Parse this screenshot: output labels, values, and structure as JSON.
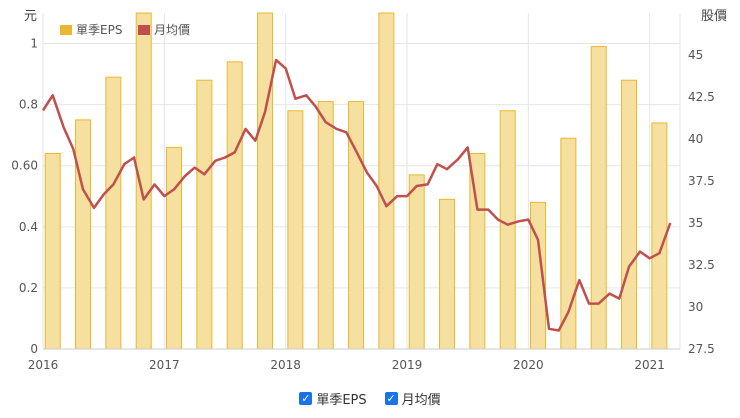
{
  "chart_data": {
    "type": "bar+line",
    "y_left_label": "元",
    "y_right_label": "股價",
    "left_axis": {
      "ylim": [
        0,
        1.1
      ],
      "ticks": [
        "0",
        "0.2",
        "0.4",
        "0.60",
        "0.8",
        "1"
      ],
      "tick_values": [
        0,
        0.2,
        0.4,
        0.6,
        0.8,
        1.0
      ]
    },
    "right_axis": {
      "ylim": [
        27.5,
        47.5
      ],
      "ticks": [
        "27.5",
        "30",
        "32.5",
        "35",
        "37.5",
        "40",
        "42.5",
        "45"
      ],
      "tick_values": [
        27.5,
        30,
        32.5,
        35,
        37.5,
        40,
        42.5,
        45
      ]
    },
    "x_axis": {
      "ticks": [
        "2016",
        "2017",
        "2018",
        "2019",
        "2020",
        "2021"
      ],
      "tick_positions": [
        2016,
        2017,
        2018,
        2019,
        2020,
        2021
      ],
      "xlim": [
        2016,
        2021.25
      ]
    },
    "grid": true,
    "legend": {
      "placement": "top-left"
    },
    "series": [
      {
        "name": "單季EPS",
        "kind": "bar",
        "color": "#f5e0a0",
        "border_color": "#e8b830",
        "x": [
          2016.08,
          2016.33,
          2016.58,
          2016.83,
          2017.08,
          2017.33,
          2017.58,
          2017.83,
          2018.08,
          2018.33,
          2018.58,
          2018.83,
          2019.08,
          2019.33,
          2019.58,
          2019.83,
          2020.08,
          2020.33,
          2020.58,
          2020.83,
          2021.08
        ],
        "values": [
          0.64,
          0.75,
          0.89,
          1.1,
          0.66,
          0.88,
          0.94,
          1.1,
          0.78,
          0.81,
          0.81,
          1.1,
          0.57,
          0.49,
          0.64,
          0.78,
          0.48,
          0.69,
          0.99,
          0.88,
          0.74
        ]
      },
      {
        "name": "月均價",
        "kind": "line",
        "color": "#c0504d",
        "x": [
          2016.0,
          2016.08,
          2016.17,
          2016.25,
          2016.33,
          2016.42,
          2016.5,
          2016.58,
          2016.67,
          2016.75,
          2016.83,
          2016.92,
          2017.0,
          2017.08,
          2017.17,
          2017.25,
          2017.33,
          2017.42,
          2017.5,
          2017.58,
          2017.67,
          2017.75,
          2017.83,
          2017.92,
          2018.0,
          2018.08,
          2018.17,
          2018.25,
          2018.33,
          2018.42,
          2018.5,
          2018.58,
          2018.67,
          2018.75,
          2018.83,
          2018.92,
          2019.0,
          2019.08,
          2019.17,
          2019.25,
          2019.33,
          2019.42,
          2019.5,
          2019.58,
          2019.67,
          2019.75,
          2019.83,
          2019.92,
          2020.0,
          2020.08,
          2020.17,
          2020.25,
          2020.33,
          2020.42,
          2020.5,
          2020.58,
          2020.67,
          2020.75,
          2020.83,
          2020.92,
          2021.0,
          2021.08,
          2021.17
        ],
        "values": [
          41.7,
          42.6,
          40.7,
          39.4,
          37.0,
          35.9,
          36.7,
          37.3,
          38.5,
          38.9,
          36.4,
          37.3,
          36.6,
          37.0,
          37.8,
          38.3,
          37.9,
          38.7,
          38.9,
          39.2,
          40.6,
          39.9,
          41.6,
          44.7,
          44.2,
          42.4,
          42.6,
          41.9,
          41.0,
          40.6,
          40.4,
          39.3,
          38.0,
          37.2,
          36.0,
          36.6,
          36.6,
          37.2,
          37.3,
          38.5,
          38.2,
          38.8,
          39.5,
          35.8,
          35.8,
          35.2,
          34.9,
          35.1,
          35.2,
          34.0,
          28.7,
          28.6,
          29.7,
          31.6,
          30.2,
          30.2,
          30.8,
          30.5,
          32.4,
          33.3,
          32.9,
          33.2,
          35.0
        ]
      }
    ]
  },
  "footer": {
    "toggle_eps_label": "單季EPS",
    "toggle_price_label": "月均價",
    "check_mark": "✓"
  }
}
